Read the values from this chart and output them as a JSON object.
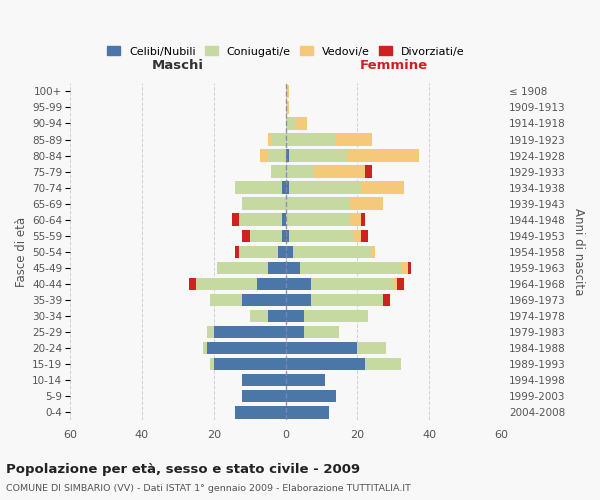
{
  "age_groups": [
    "0-4",
    "5-9",
    "10-14",
    "15-19",
    "20-24",
    "25-29",
    "30-34",
    "35-39",
    "40-44",
    "45-49",
    "50-54",
    "55-59",
    "60-64",
    "65-69",
    "70-74",
    "75-79",
    "80-84",
    "85-89",
    "90-94",
    "95-99",
    "100+"
  ],
  "birth_years": [
    "2004-2008",
    "1999-2003",
    "1994-1998",
    "1989-1993",
    "1984-1988",
    "1979-1983",
    "1974-1978",
    "1969-1973",
    "1964-1968",
    "1959-1963",
    "1954-1958",
    "1949-1953",
    "1944-1948",
    "1939-1943",
    "1934-1938",
    "1929-1933",
    "1924-1928",
    "1919-1923",
    "1914-1918",
    "1909-1913",
    "≤ 1908"
  ],
  "colors": {
    "celibi": "#4a76a8",
    "coniugati": "#c5d9a0",
    "vedovi": "#f5c97a",
    "divorziati": "#cc2222"
  },
  "males": {
    "celibi": [
      14,
      12,
      12,
      20,
      22,
      20,
      5,
      12,
      8,
      5,
      2,
      1,
      1,
      0,
      1,
      0,
      0,
      0,
      0,
      0,
      0
    ],
    "coniugati": [
      0,
      0,
      0,
      1,
      1,
      2,
      5,
      9,
      17,
      14,
      11,
      9,
      12,
      12,
      13,
      4,
      5,
      4,
      0,
      0,
      0
    ],
    "vedovi": [
      0,
      0,
      0,
      0,
      0,
      0,
      0,
      0,
      0,
      0,
      0,
      0,
      0,
      0,
      0,
      0,
      2,
      1,
      0,
      0,
      0
    ],
    "divorziati": [
      0,
      0,
      0,
      0,
      0,
      0,
      0,
      0,
      2,
      0,
      1,
      2,
      2,
      0,
      0,
      0,
      0,
      0,
      0,
      0,
      0
    ]
  },
  "females": {
    "celibi": [
      12,
      14,
      11,
      22,
      20,
      5,
      5,
      7,
      7,
      4,
      2,
      1,
      0,
      0,
      1,
      0,
      1,
      0,
      0,
      0,
      0
    ],
    "coniugati": [
      0,
      0,
      0,
      10,
      8,
      10,
      18,
      20,
      23,
      28,
      22,
      18,
      18,
      18,
      20,
      8,
      16,
      14,
      3,
      0,
      0
    ],
    "vedovi": [
      0,
      0,
      0,
      0,
      0,
      0,
      0,
      0,
      1,
      2,
      1,
      2,
      3,
      9,
      12,
      14,
      20,
      10,
      3,
      1,
      1
    ],
    "divorziati": [
      0,
      0,
      0,
      0,
      0,
      0,
      0,
      2,
      2,
      1,
      0,
      2,
      1,
      0,
      0,
      2,
      0,
      0,
      0,
      0,
      0
    ]
  },
  "xlim": 60,
  "title": "Popolazione per età, sesso e stato civile - 2009",
  "subtitle": "COMUNE DI SIMBARIO (VV) - Dati ISTAT 1° gennaio 2009 - Elaborazione TUTTITALIA.IT",
  "ylabel_left": "Fasce di età",
  "ylabel_right": "Anni di nascita",
  "xlabel_left": "Maschi",
  "xlabel_right": "Femmine",
  "legend_labels": [
    "Celibi/Nubili",
    "Coniugati/e",
    "Vedovi/e",
    "Divorziati/e"
  ],
  "background_color": "#f8f8f8",
  "grid_color": "#cccccc"
}
